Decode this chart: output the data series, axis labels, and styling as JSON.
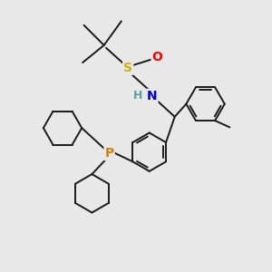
{
  "bg_color": "#e8e8e8",
  "atom_colors": {
    "S": "#c8b400",
    "O": "#ff0000",
    "N": "#0000cc",
    "P": "#d4820a",
    "H": "#5f9ea0",
    "C": "#1a1a1a"
  },
  "bond_color": "#1a1a1a",
  "bond_width": 1.4
}
